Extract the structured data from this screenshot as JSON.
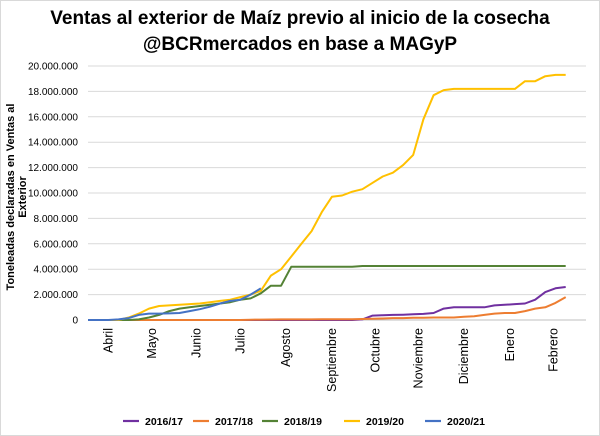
{
  "chart_data": {
    "type": "line",
    "title": "Ventas al exterior de Maíz previo al inicio de la cosecha",
    "subtitle": "@BCRmercados  en base a MAGyP",
    "ylabel": "Toneleadas declaradas en Ventas al Exterior",
    "xlabel": "",
    "ylim": [
      0,
      20000000
    ],
    "y_ticks": [
      "0",
      "2.000.000",
      "4.000.000",
      "6.000.000",
      "8.000.000",
      "10.000.000",
      "12.000.000",
      "14.000.000",
      "16.000.000",
      "18.000.000",
      "20.000.000"
    ],
    "y_tick_values": [
      0,
      2000000,
      4000000,
      6000000,
      8000000,
      10000000,
      12000000,
      14000000,
      16000000,
      18000000,
      20000000
    ],
    "x_range_weeks": [
      0,
      49
    ],
    "x_ticks": [
      {
        "label": "Abril",
        "week": 2
      },
      {
        "label": "Mayo",
        "week": 6.3
      },
      {
        "label": "Junio",
        "week": 10.7
      },
      {
        "label": "Julio",
        "week": 15
      },
      {
        "label": "Agosto",
        "week": 19.5
      },
      {
        "label": "Septiembre",
        "week": 24
      },
      {
        "label": "Octubre",
        "week": 28.3
      },
      {
        "label": "Noviembre",
        "week": 32.5
      },
      {
        "label": "Diciembre",
        "week": 37
      },
      {
        "label": "Enero",
        "week": 41.5
      },
      {
        "label": "Febrero",
        "week": 45.8
      }
    ],
    "grid": true,
    "legend": "bottom",
    "series": [
      {
        "name": "2016/17",
        "color": "#7030a0",
        "x": [
          0,
          1,
          2,
          3,
          4,
          5,
          6,
          7,
          8,
          9,
          10,
          11,
          12,
          13,
          14,
          15,
          16,
          17,
          18,
          19,
          20,
          21,
          22,
          23,
          24,
          25,
          26,
          27,
          28,
          29,
          30,
          31,
          32,
          33,
          34,
          35,
          36,
          37,
          38,
          39,
          40,
          41,
          42,
          43,
          44,
          45,
          46,
          47
        ],
        "y": [
          0,
          0,
          0,
          0,
          0,
          0,
          0,
          0,
          0,
          0,
          0,
          0,
          0,
          0,
          0,
          0,
          0,
          0,
          0,
          0,
          0,
          0,
          0,
          0,
          0,
          0,
          0,
          50000,
          350000,
          380000,
          400000,
          420000,
          450000,
          480000,
          550000,
          900000,
          1000000,
          1000000,
          1000000,
          1000000,
          1150000,
          1200000,
          1250000,
          1300000,
          1600000,
          2200000,
          2500000,
          2600000
        ]
      },
      {
        "name": "2017/18",
        "color": "#ed7d31",
        "x": [
          0,
          1,
          2,
          3,
          4,
          5,
          6,
          7,
          8,
          9,
          10,
          11,
          12,
          13,
          14,
          15,
          16,
          17,
          18,
          19,
          20,
          21,
          22,
          23,
          24,
          25,
          26,
          27,
          28,
          29,
          30,
          31,
          32,
          33,
          34,
          35,
          36,
          37,
          38,
          39,
          40,
          41,
          42,
          43,
          44,
          45,
          46,
          47
        ],
        "y": [
          0,
          0,
          0,
          0,
          0,
          0,
          0,
          0,
          0,
          0,
          0,
          0,
          0,
          0,
          0,
          0,
          20000,
          30000,
          40000,
          50000,
          50000,
          50000,
          50000,
          60000,
          60000,
          60000,
          60000,
          80000,
          100000,
          120000,
          150000,
          150000,
          170000,
          180000,
          200000,
          200000,
          200000,
          250000,
          300000,
          400000,
          500000,
          550000,
          550000,
          700000,
          900000,
          1000000,
          1350000,
          1800000
        ]
      },
      {
        "name": "2018/19",
        "color": "#548235",
        "x": [
          0,
          1,
          2,
          3,
          4,
          5,
          6,
          7,
          8,
          9,
          10,
          11,
          12,
          13,
          14,
          15,
          16,
          17,
          18,
          19,
          20,
          21,
          22,
          23,
          24,
          25,
          26,
          27,
          28,
          29,
          30,
          31,
          32,
          33,
          34,
          35,
          36,
          37,
          38,
          39,
          40,
          41,
          42,
          43,
          44,
          45,
          46,
          47
        ],
        "y": [
          0,
          0,
          0,
          0,
          0,
          50000,
          200000,
          400000,
          700000,
          900000,
          1000000,
          1100000,
          1200000,
          1300000,
          1400000,
          1600000,
          1700000,
          2100000,
          2700000,
          2700000,
          4200000,
          4200000,
          4200000,
          4200000,
          4200000,
          4200000,
          4200000,
          4250000,
          4250000,
          4250000,
          4250000,
          4250000,
          4250000,
          4250000,
          4250000,
          4250000,
          4250000,
          4250000,
          4250000,
          4250000,
          4250000,
          4250000,
          4250000,
          4250000,
          4250000,
          4250000,
          4250000,
          4250000
        ]
      },
      {
        "name": "2019/20",
        "color": "#ffc000",
        "x": [
          0,
          1,
          2,
          3,
          4,
          5,
          6,
          7,
          8,
          9,
          10,
          11,
          12,
          13,
          14,
          15,
          16,
          17,
          18,
          19,
          20,
          21,
          22,
          23,
          24,
          25,
          26,
          27,
          28,
          29,
          30,
          31,
          32,
          33,
          34,
          35,
          36,
          37,
          38,
          39,
          40,
          41,
          42,
          43,
          44,
          45,
          46,
          47
        ],
        "y": [
          0,
          0,
          0,
          0,
          200000,
          500000,
          900000,
          1100000,
          1150000,
          1200000,
          1250000,
          1300000,
          1400000,
          1500000,
          1600000,
          1800000,
          2000000,
          2300000,
          3500000,
          4000000,
          5000000,
          6000000,
          7000000,
          8500000,
          9700000,
          9800000,
          10100000,
          10300000,
          10800000,
          11300000,
          11600000,
          12200000,
          13000000,
          15800000,
          17700000,
          18100000,
          18200000,
          18200000,
          18200000,
          18200000,
          18200000,
          18200000,
          18200000,
          18800000,
          18800000,
          19200000,
          19300000,
          19300000
        ]
      },
      {
        "name": "2020/21",
        "color": "#4472c4",
        "x": [
          0,
          1,
          2,
          3,
          4,
          5,
          6,
          7,
          8,
          9,
          10,
          11,
          12,
          13,
          14,
          15,
          16,
          17
        ],
        "y": [
          0,
          0,
          0,
          50000,
          150000,
          400000,
          500000,
          500000,
          520000,
          550000,
          700000,
          850000,
          1050000,
          1300000,
          1500000,
          1600000,
          2000000,
          2500000
        ]
      }
    ]
  }
}
